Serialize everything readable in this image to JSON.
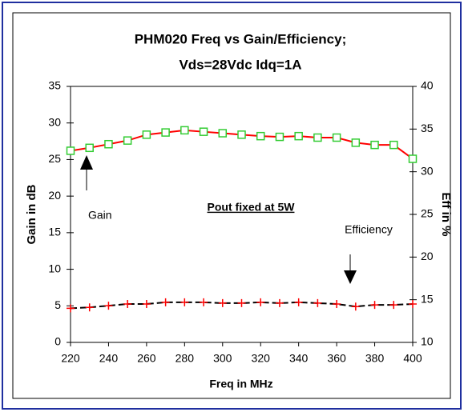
{
  "chart_data": {
    "type": "line",
    "title": [
      "PHM020 Freq vs Gain/Efficiency;",
      "Vds=28Vdc Idq=1A"
    ],
    "x_label": "Freq in MHz",
    "y_label": "Gain in dB",
    "y2_label": "Eff in %",
    "annotations": [
      "Gain",
      "Pout fixed at 5W",
      "Efficiency"
    ],
    "x": [
      220,
      230,
      240,
      250,
      260,
      270,
      280,
      290,
      300,
      310,
      320,
      330,
      340,
      350,
      360,
      370,
      380,
      390,
      400
    ],
    "series": [
      {
        "name": "Gain",
        "color": "#ff0000",
        "marker_color": "#33cc33",
        "values": [
          26.2,
          26.6,
          27.1,
          27.6,
          28.4,
          28.7,
          29.0,
          28.8,
          28.6,
          28.4,
          28.2,
          28.1,
          28.2,
          28.0,
          28.0,
          27.3,
          27.0,
          27.0,
          25.1
        ]
      },
      {
        "name": "Efficiency",
        "color": "#000000",
        "marker_color": "#ff0000",
        "axis": "y2",
        "values": [
          14.0,
          14.1,
          14.3,
          14.5,
          14.5,
          14.7,
          14.7,
          14.7,
          14.6,
          14.6,
          14.7,
          14.6,
          14.7,
          14.6,
          14.5,
          14.2,
          14.4,
          14.4,
          14.5
        ]
      }
    ],
    "xlim": [
      220,
      400
    ],
    "xticks": [
      220,
      240,
      260,
      280,
      300,
      320,
      340,
      360,
      380,
      400
    ],
    "ylim": [
      0,
      35
    ],
    "yticks": [
      0,
      5,
      10,
      15,
      20,
      25,
      30,
      35
    ],
    "y2lim": [
      10,
      40
    ],
    "y2ticks": [
      10,
      15,
      20,
      25,
      30,
      35,
      40
    ]
  }
}
